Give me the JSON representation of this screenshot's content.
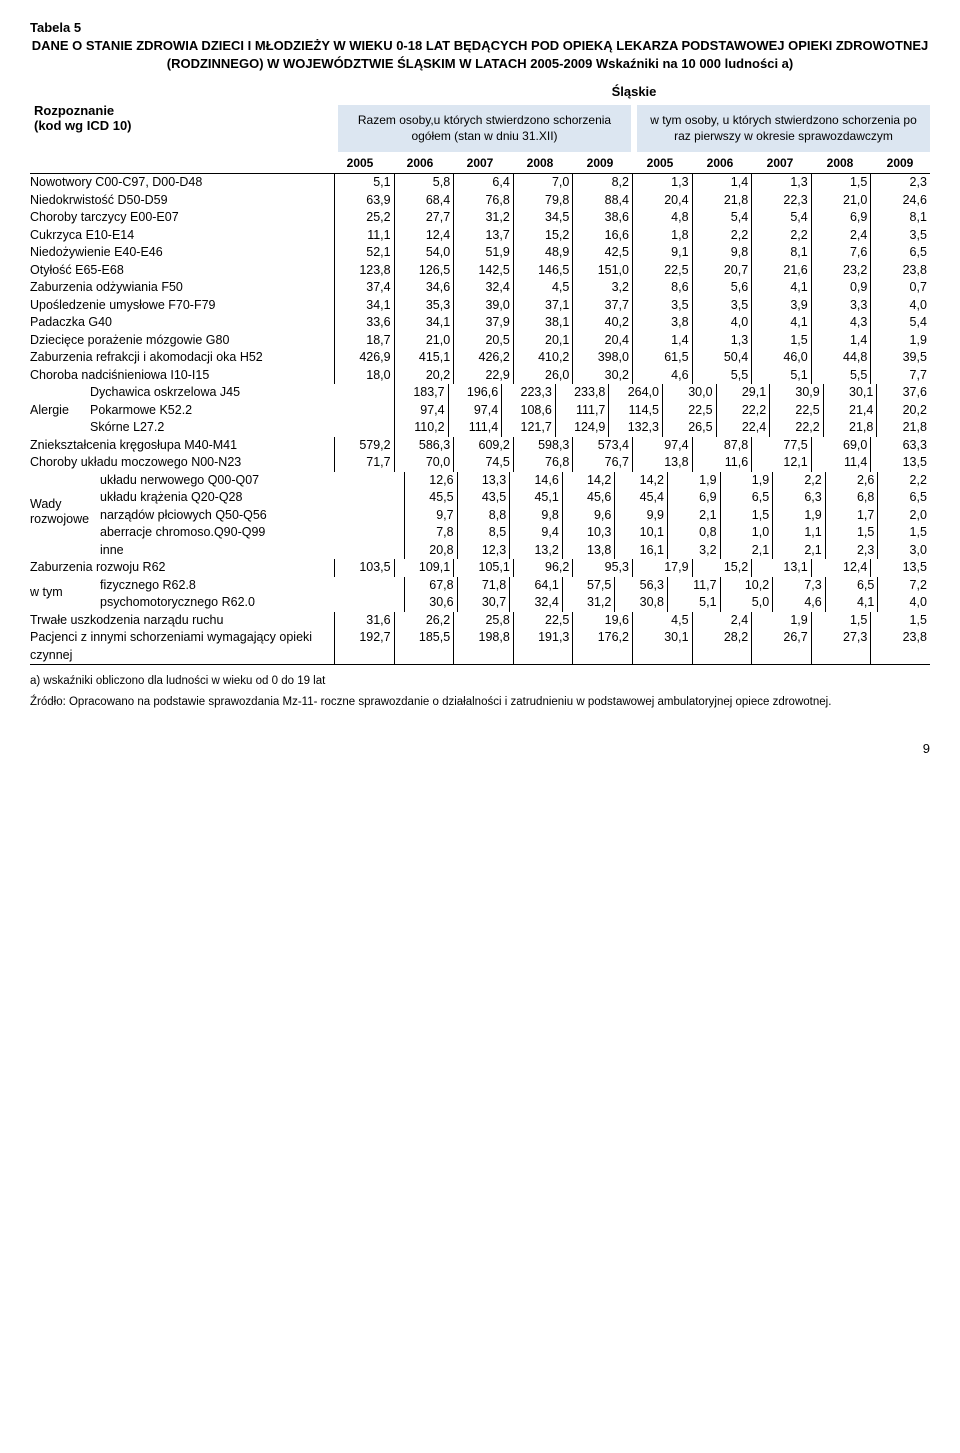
{
  "tableLabel": "Tabela 5",
  "title": "DANE O STANIE ZDROWIA DZIECI I MŁODZIEŻY W WIEKU 0-18 LAT BĘDĄCYCH POD OPIEKĄ LEKARZA PODSTAWOWEJ OPIEKI ZDROWOTNEJ (RODZINNEGO) W WOJEWÓDZTWIE ŚLĄSKIM W LATACH 2005-2009 Wskaźniki na 10 000 ludności  a)",
  "rowHeader1": "Rozpoznanie",
  "rowHeader2": "(kod wg ICD 10)",
  "region": "Śląskie",
  "subHeader1": "Razem osoby,u których stwierdzono schorzenia ogółem (stan w dniu 31.XII)",
  "subHeader2": "w tym osoby, u których stwierdzono schorzenia po raz pierwszy w okresie sprawozdawczym",
  "years": [
    "2005",
    "2006",
    "2007",
    "2008",
    "2009",
    "2005",
    "2006",
    "2007",
    "2008",
    "2009"
  ],
  "groupLabels": {
    "alergie": "Alergie",
    "wady": "Wady rozwojowe",
    "wtym": "w tym"
  },
  "rows": [
    {
      "label": "Nowotwory C00-C97, D00-D48",
      "v": [
        "5,1",
        "5,8",
        "6,4",
        "7,0",
        "8,2",
        "1,3",
        "1,4",
        "1,3",
        "1,5",
        "2,3"
      ]
    },
    {
      "label": "Niedokrwistość D50-D59",
      "v": [
        "63,9",
        "68,4",
        "76,8",
        "79,8",
        "88,4",
        "20,4",
        "21,8",
        "22,3",
        "21,0",
        "24,6"
      ]
    },
    {
      "label": "Choroby tarczycy E00-E07",
      "v": [
        "25,2",
        "27,7",
        "31,2",
        "34,5",
        "38,6",
        "4,8",
        "5,4",
        "5,4",
        "6,9",
        "8,1"
      ]
    },
    {
      "label": "Cukrzyca E10-E14",
      "v": [
        "11,1",
        "12,4",
        "13,7",
        "15,2",
        "16,6",
        "1,8",
        "2,2",
        "2,2",
        "2,4",
        "3,5"
      ]
    },
    {
      "label": "Niedożywienie E40-E46",
      "v": [
        "52,1",
        "54,0",
        "51,9",
        "48,9",
        "42,5",
        "9,1",
        "9,8",
        "8,1",
        "7,6",
        "6,5"
      ]
    },
    {
      "label": "Otyłość E65-E68",
      "v": [
        "123,8",
        "126,5",
        "142,5",
        "146,5",
        "151,0",
        "22,5",
        "20,7",
        "21,6",
        "23,2",
        "23,8"
      ]
    },
    {
      "label": "Zaburzenia odżywiania F50",
      "v": [
        "37,4",
        "34,6",
        "32,4",
        "4,5",
        "3,2",
        "8,6",
        "5,6",
        "4,1",
        "0,9",
        "0,7"
      ]
    },
    {
      "label": "Upośledzenie umysłowe F70-F79",
      "v": [
        "34,1",
        "35,3",
        "39,0",
        "37,1",
        "37,7",
        "3,5",
        "3,5",
        "3,9",
        "3,3",
        "4,0"
      ]
    },
    {
      "label": "Padaczka G40",
      "v": [
        "33,6",
        "34,1",
        "37,9",
        "38,1",
        "40,2",
        "3,8",
        "4,0",
        "4,1",
        "4,3",
        "5,4"
      ]
    },
    {
      "label": "Dziecięce porażenie mózgowie G80",
      "v": [
        "18,7",
        "21,0",
        "20,5",
        "20,1",
        "20,4",
        "1,4",
        "1,3",
        "1,5",
        "1,4",
        "1,9"
      ]
    },
    {
      "label": "Zaburzenia refrakcji i akomodacji oka H52",
      "v": [
        "426,9",
        "415,1",
        "426,2",
        "410,2",
        "398,0",
        "61,5",
        "50,4",
        "46,0",
        "44,8",
        "39,5"
      ]
    },
    {
      "label": "Choroba nadciśnieniowa I10-I15",
      "v": [
        "18,0",
        "20,2",
        "22,9",
        "26,0",
        "30,2",
        "4,6",
        "5,5",
        "5,1",
        "5,5",
        "7,7"
      ]
    },
    {
      "label": "Dychawica oskrzelowa J45",
      "indent": 1,
      "v": [
        "183,7",
        "196,6",
        "223,3",
        "233,8",
        "264,0",
        "30,0",
        "29,1",
        "30,9",
        "30,1",
        "37,6"
      ]
    },
    {
      "label": "Pokarmowe K52.2",
      "indent": 1,
      "group": "alergie",
      "v": [
        "97,4",
        "97,4",
        "108,6",
        "111,7",
        "114,5",
        "22,5",
        "22,2",
        "22,5",
        "21,4",
        "20,2"
      ]
    },
    {
      "label": "Skórne L27.2",
      "indent": 1,
      "v": [
        "110,2",
        "111,4",
        "121,7",
        "124,9",
        "132,3",
        "26,5",
        "22,4",
        "22,2",
        "21,8",
        "21,8"
      ]
    },
    {
      "label": "Zniekształcenia kręgosłupa M40-M41",
      "v": [
        "579,2",
        "586,3",
        "609,2",
        "598,3",
        "573,4",
        "97,4",
        "87,8",
        "77,5",
        "69,0",
        "63,3"
      ]
    },
    {
      "label": "Choroby układu moczowego N00-N23",
      "v": [
        "71,7",
        "70,0",
        "74,5",
        "76,8",
        "76,7",
        "13,8",
        "11,6",
        "12,1",
        "11,4",
        "13,5"
      ]
    },
    {
      "label": "układu nerwowego Q00-Q07",
      "indent": 2,
      "v": [
        "12,6",
        "13,3",
        "14,6",
        "14,2",
        "14,2",
        "1,9",
        "1,9",
        "2,2",
        "2,6",
        "2,2"
      ]
    },
    {
      "label": "układu krążenia Q20-Q28",
      "indent": 2,
      "v": [
        "45,5",
        "43,5",
        "45,1",
        "45,6",
        "45,4",
        "6,9",
        "6,5",
        "6,3",
        "6,8",
        "6,5"
      ]
    },
    {
      "label": "narządów płciowych Q50-Q56",
      "indent": 2,
      "group": "wady",
      "v": [
        "9,7",
        "8,8",
        "9,8",
        "9,6",
        "9,9",
        "2,1",
        "1,5",
        "1,9",
        "1,7",
        "2,0"
      ]
    },
    {
      "label": "aberracje chromoso.Q90-Q99",
      "indent": 2,
      "v": [
        "7,8",
        "8,5",
        "9,4",
        "10,3",
        "10,1",
        "0,8",
        "1,0",
        "1,1",
        "1,5",
        "1,5"
      ]
    },
    {
      "label": "inne",
      "indent": 2,
      "v": [
        "20,8",
        "12,3",
        "13,2",
        "13,8",
        "16,1",
        "3,2",
        "2,1",
        "2,1",
        "2,3",
        "3,0"
      ]
    },
    {
      "label": "Zaburzenia rozwoju R62",
      "v": [
        "103,5",
        "109,1",
        "105,1",
        "96,2",
        "95,3",
        "17,9",
        "15,2",
        "13,1",
        "12,4",
        "13,5"
      ]
    },
    {
      "label": "fizycznego R62.8",
      "indent": 2,
      "v": [
        "67,8",
        "71,8",
        "64,1",
        "57,5",
        "56,3",
        "11,7",
        "10,2",
        "7,3",
        "6,5",
        "7,2"
      ]
    },
    {
      "label": "psychomotorycznego R62.0",
      "indent": 2,
      "group": "wtym",
      "v": [
        "30,6",
        "30,7",
        "32,4",
        "31,2",
        "30,8",
        "5,1",
        "5,0",
        "4,6",
        "4,1",
        "4,0"
      ]
    },
    {
      "label": "Trwałe uszkodzenia narządu ruchu",
      "v": [
        "31,6",
        "26,2",
        "25,8",
        "22,5",
        "19,6",
        "4,5",
        "2,4",
        "1,9",
        "1,5",
        "1,5"
      ]
    },
    {
      "label": "Pacjenci z innymi schorzeniami wymagający opieki czynnej",
      "v": [
        "192,7",
        "185,5",
        "198,8",
        "191,3",
        "176,2",
        "30,1",
        "28,2",
        "26,7",
        "27,3",
        "23,8"
      ]
    }
  ],
  "footnote": "a) wskaźniki obliczono dla ludności w wieku od 0 do 19 lat",
  "source": "Źródło: Opracowano na podstawie sprawozdania Mz-11- roczne sprawozdanie o działalności i zatrudnieniu w podstawowej ambulatoryjnej opiece zdrowotnej.",
  "pageNumber": "9"
}
